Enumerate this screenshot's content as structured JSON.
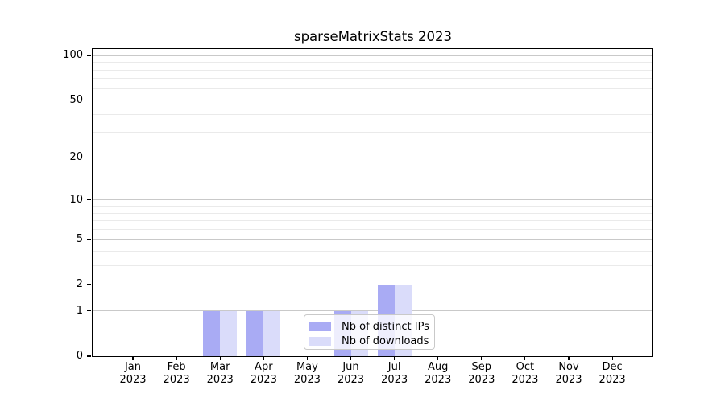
{
  "chart_data": {
    "type": "bar",
    "title": "sparseMatrixStats 2023",
    "categories": [
      {
        "month": "Jan",
        "year": "2023"
      },
      {
        "month": "Feb",
        "year": "2023"
      },
      {
        "month": "Mar",
        "year": "2023"
      },
      {
        "month": "Apr",
        "year": "2023"
      },
      {
        "month": "May",
        "year": "2023"
      },
      {
        "month": "Jun",
        "year": "2023"
      },
      {
        "month": "Jul",
        "year": "2023"
      },
      {
        "month": "Aug",
        "year": "2023"
      },
      {
        "month": "Sep",
        "year": "2023"
      },
      {
        "month": "Oct",
        "year": "2023"
      },
      {
        "month": "Nov",
        "year": "2023"
      },
      {
        "month": "Dec",
        "year": "2023"
      }
    ],
    "series": [
      {
        "name": "Nb of distinct IPs",
        "color": "#a9abf4",
        "values": [
          0,
          0,
          1,
          1,
          0,
          1,
          2,
          0,
          0,
          0,
          0,
          0
        ]
      },
      {
        "name": "Nb of downloads",
        "color": "#dadcfa",
        "values": [
          0,
          0,
          1,
          1,
          0,
          1,
          2,
          0,
          0,
          0,
          0,
          0
        ]
      }
    ],
    "y_axis": {
      "scale": "log10(x+1)",
      "major_ticks": [
        0,
        1,
        2,
        5,
        10,
        20,
        50,
        100
      ],
      "minor_gridlines": [
        3,
        4,
        6,
        7,
        8,
        9,
        30,
        40,
        60,
        70,
        80,
        90
      ],
      "ylim": [
        0,
        113
      ]
    },
    "legend_position": "inside-bottom-center",
    "grid": true,
    "colors": {
      "major_grid": "#c9c9c9",
      "minor_grid": "#eaeaea",
      "spine": "#000000"
    }
  }
}
